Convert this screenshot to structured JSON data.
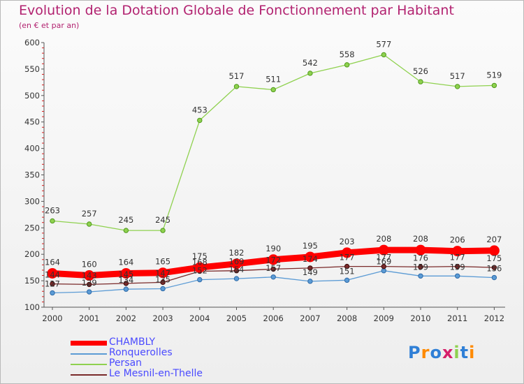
{
  "title": "Evolution de la Dotation Globale de Fonctionnement par Habitant",
  "subtitle": "(en € et par an)",
  "logo_text": "Proxiti",
  "colors": {
    "title": "#b22270",
    "legend_text": "#4a4aff",
    "chambly": "#ff0000",
    "ronquerolles": "#5b9bd5",
    "persan": "#8fd14f",
    "mesnil": "#7a2a2a"
  },
  "chart_data": {
    "type": "line",
    "title": "Evolution de la Dotation Globale de Fonctionnement par Habitant",
    "subtitle": "(en € et par an)",
    "xlabel": "",
    "ylabel": "",
    "ylim": [
      100,
      600
    ],
    "yticks": [
      100,
      150,
      200,
      250,
      300,
      350,
      400,
      450,
      500,
      550,
      600
    ],
    "grid": false,
    "legend_position": "bottom-left",
    "categories": [
      "2000",
      "2001",
      "2002",
      "2003",
      "2004",
      "2005",
      "2006",
      "2007",
      "2008",
      "2009",
      "2010",
      "2011",
      "2012"
    ],
    "series": [
      {
        "name": "CHAMBLY",
        "key": "chambly",
        "values": [
          164,
          160,
          164,
          165,
          175,
          182,
          190,
          195,
          203,
          208,
          208,
          206,
          207
        ],
        "labels": [
          "164",
          "160",
          "164",
          "165",
          "175",
          "182",
          "190",
          "195",
          "203",
          "208",
          "208",
          "206",
          "207"
        ]
      },
      {
        "name": "Ronquerolles",
        "key": "ronquerolles",
        "values": [
          127,
          129,
          134,
          135,
          152,
          154,
          157,
          149,
          151,
          169,
          159,
          159,
          156
        ],
        "labels": [
          "127",
          "129",
          "134",
          "135",
          "152",
          "154",
          "157",
          "149",
          "151",
          "169",
          "159",
          "159",
          "156"
        ]
      },
      {
        "name": "Persan",
        "key": "persan",
        "values": [
          263,
          257,
          245,
          245,
          453,
          517,
          511,
          542,
          558,
          577,
          526,
          517,
          519
        ],
        "labels": [
          "263",
          "257",
          "245",
          "245",
          "453",
          "517",
          "511",
          "542",
          "558",
          "577",
          "526",
          "517",
          "519"
        ]
      },
      {
        "name": "Le Mesnil-en-Thelle",
        "key": "mesnil",
        "values": [
          144,
          143,
          145,
          147,
          168,
          169,
          172,
          174,
          177,
          177,
          176,
          177,
          175
        ],
        "labels": [
          "144",
          "143",
          "145",
          "147",
          "168",
          "169",
          "172",
          "174",
          "177",
          "177",
          "176",
          "177",
          "175"
        ]
      }
    ]
  }
}
